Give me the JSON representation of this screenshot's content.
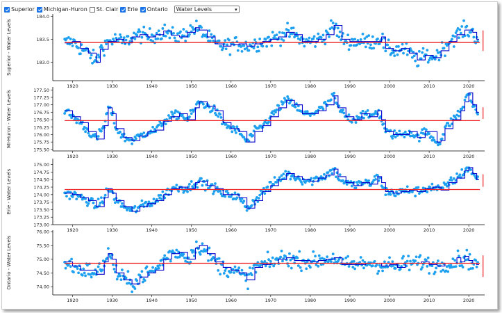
{
  "toolbar": {
    "lakes": [
      {
        "label": "Superior",
        "checked": true
      },
      {
        "label": "Michigan-Huron",
        "checked": true
      },
      {
        "label": "St. Clair",
        "checked": false
      },
      {
        "label": "Erie",
        "checked": true
      },
      {
        "label": "Ontario",
        "checked": true
      }
    ],
    "select_value": "Water Levels",
    "select_icon": "chevron-down-icon"
  },
  "colors": {
    "monthly_points": "#1ea0f0",
    "annual_mean_line": "#0000cc",
    "long_term_average": "#ee2222",
    "axis": "#000000"
  },
  "chart_data": [
    {
      "type": "scatter",
      "ylabel": "Superior - Water Levels",
      "ylim": [
        182.6,
        184.05
      ],
      "yticks": [
        183.0,
        183.5,
        184.0
      ],
      "ytick_labels": [
        "183.0",
        "183.5",
        "184.0"
      ],
      "xlim": [
        1915,
        2024
      ],
      "xticks": [
        1920,
        1930,
        1940,
        1950,
        1960,
        1970,
        1980,
        1990,
        2000,
        2010,
        2020
      ],
      "long_term_average": 183.43,
      "series": [
        {
          "type": "line",
          "points": [
            [
              1918,
              183.42
            ],
            [
              1920,
              183.45
            ],
            [
              1922,
              183.3
            ],
            [
              1924,
              183.2
            ],
            [
              1926,
              183.0
            ],
            [
              1927,
              183.28
            ],
            [
              1929,
              183.45
            ],
            [
              1931,
              183.5
            ],
            [
              1933,
              183.42
            ],
            [
              1935,
              183.55
            ],
            [
              1937,
              183.6
            ],
            [
              1939,
              183.55
            ],
            [
              1941,
              183.6
            ],
            [
              1943,
              183.68
            ],
            [
              1945,
              183.58
            ],
            [
              1947,
              183.55
            ],
            [
              1949,
              183.65
            ],
            [
              1951,
              183.75
            ],
            [
              1952,
              183.7
            ],
            [
              1954,
              183.55
            ],
            [
              1956,
              183.4
            ],
            [
              1958,
              183.35
            ],
            [
              1960,
              183.38
            ],
            [
              1962,
              183.4
            ],
            [
              1964,
              183.35
            ],
            [
              1966,
              183.4
            ],
            [
              1968,
              183.45
            ],
            [
              1970,
              183.5
            ],
            [
              1972,
              183.55
            ],
            [
              1974,
              183.65
            ],
            [
              1976,
              183.6
            ],
            [
              1978,
              183.45
            ],
            [
              1980,
              183.45
            ],
            [
              1982,
              183.5
            ],
            [
              1984,
              183.6
            ],
            [
              1986,
              183.8
            ],
            [
              1988,
              183.5
            ],
            [
              1990,
              183.45
            ],
            [
              1992,
              183.45
            ],
            [
              1994,
              183.45
            ],
            [
              1996,
              183.45
            ],
            [
              1998,
              183.55
            ],
            [
              1999,
              183.3
            ],
            [
              2001,
              183.25
            ],
            [
              2003,
              183.3
            ],
            [
              2005,
              183.2
            ],
            [
              2007,
              183.05
            ],
            [
              2009,
              183.15
            ],
            [
              2011,
              183.1
            ],
            [
              2013,
              183.25
            ],
            [
              2015,
              183.45
            ],
            [
              2017,
              183.6
            ],
            [
              2019,
              183.7
            ],
            [
              2021,
              183.65
            ],
            [
              2022,
              183.5
            ]
          ]
        },
        {
          "type": "scatter",
          "spread": 0.16
        }
      ]
    },
    {
      "type": "scatter",
      "ylabel": "MI-Huron - Water Levels",
      "ylim": [
        175.45,
        177.6
      ],
      "yticks": [
        175.5,
        175.75,
        176.0,
        176.25,
        176.5,
        176.75,
        177.0,
        177.25,
        177.5
      ],
      "ytick_labels": [
        "175.50",
        "175.75",
        "176.00",
        "176.25",
        "176.50",
        "176.75",
        "177.00",
        "177.25",
        "177.50"
      ],
      "xlim": [
        1915,
        2024
      ],
      "xticks": [
        1920,
        1930,
        1940,
        1950,
        1960,
        1970,
        1980,
        1990,
        2000,
        2010,
        2020
      ],
      "long_term_average": 176.47,
      "series": [
        {
          "type": "line",
          "points": [
            [
              1918,
              176.8
            ],
            [
              1920,
              176.6
            ],
            [
              1922,
              176.4
            ],
            [
              1924,
              176.1
            ],
            [
              1926,
              175.85
            ],
            [
              1928,
              176.3
            ],
            [
              1929,
              176.9
            ],
            [
              1930,
              176.7
            ],
            [
              1931,
              176.2
            ],
            [
              1933,
              175.9
            ],
            [
              1935,
              175.8
            ],
            [
              1937,
              175.95
            ],
            [
              1939,
              176.1
            ],
            [
              1941,
              176.15
            ],
            [
              1943,
              176.45
            ],
            [
              1945,
              176.6
            ],
            [
              1947,
              176.7
            ],
            [
              1949,
              176.5
            ],
            [
              1951,
              176.9
            ],
            [
              1952,
              177.1
            ],
            [
              1954,
              176.95
            ],
            [
              1956,
              176.8
            ],
            [
              1958,
              176.4
            ],
            [
              1960,
              176.2
            ],
            [
              1962,
              176.1
            ],
            [
              1964,
              175.75
            ],
            [
              1966,
              176.1
            ],
            [
              1968,
              176.3
            ],
            [
              1970,
              176.6
            ],
            [
              1972,
              176.9
            ],
            [
              1974,
              177.15
            ],
            [
              1976,
              177.0
            ],
            [
              1978,
              176.7
            ],
            [
              1980,
              176.7
            ],
            [
              1982,
              176.8
            ],
            [
              1984,
              177.0
            ],
            [
              1986,
              177.3
            ],
            [
              1987,
              176.9
            ],
            [
              1989,
              176.6
            ],
            [
              1991,
              176.5
            ],
            [
              1993,
              176.7
            ],
            [
              1995,
              176.6
            ],
            [
              1997,
              176.8
            ],
            [
              1998,
              176.5
            ],
            [
              1999,
              176.1
            ],
            [
              2001,
              176.0
            ],
            [
              2003,
              176.0
            ],
            [
              2005,
              176.1
            ],
            [
              2007,
              175.9
            ],
            [
              2009,
              176.1
            ],
            [
              2012,
              175.75
            ],
            [
              2013,
              175.8
            ],
            [
              2014,
              176.2
            ],
            [
              2016,
              176.5
            ],
            [
              2018,
              176.8
            ],
            [
              2019,
              177.1
            ],
            [
              2020,
              177.4
            ],
            [
              2021,
              177.0
            ],
            [
              2022,
              176.75
            ]
          ]
        },
        {
          "type": "scatter",
          "spread": 0.14
        }
      ]
    },
    {
      "type": "scatter",
      "ylabel": "Erie - Water Levels",
      "ylim": [
        173.0,
        175.2
      ],
      "yticks": [
        173.0,
        173.25,
        173.5,
        173.75,
        174.0,
        174.25,
        174.5,
        174.75,
        175.0
      ],
      "ytick_labels": [
        "173.00",
        "173.25",
        "173.50",
        "173.75",
        "174.00",
        "174.25",
        "174.50",
        "174.75",
        "175.00"
      ],
      "xlim": [
        1915,
        2024
      ],
      "xticks": [
        1920,
        1930,
        1940,
        1950,
        1960,
        1970,
        1980,
        1990,
        2000,
        2010,
        2020
      ],
      "long_term_average": 174.17,
      "series": [
        {
          "type": "line",
          "points": [
            [
              1918,
              174.05
            ],
            [
              1920,
              174.0
            ],
            [
              1922,
              173.9
            ],
            [
              1924,
              173.8
            ],
            [
              1926,
              173.6
            ],
            [
              1928,
              173.9
            ],
            [
              1929,
              174.2
            ],
            [
              1930,
              174.05
            ],
            [
              1931,
              173.8
            ],
            [
              1933,
              173.6
            ],
            [
              1935,
              173.45
            ],
            [
              1937,
              173.6
            ],
            [
              1939,
              173.7
            ],
            [
              1941,
              173.8
            ],
            [
              1943,
              174.0
            ],
            [
              1945,
              174.2
            ],
            [
              1947,
              174.25
            ],
            [
              1949,
              174.2
            ],
            [
              1951,
              174.4
            ],
            [
              1952,
              174.45
            ],
            [
              1954,
              174.3
            ],
            [
              1956,
              174.2
            ],
            [
              1958,
              174.0
            ],
            [
              1960,
              174.0
            ],
            [
              1962,
              173.9
            ],
            [
              1964,
              173.55
            ],
            [
              1966,
              173.8
            ],
            [
              1968,
              174.1
            ],
            [
              1970,
              174.3
            ],
            [
              1972,
              174.5
            ],
            [
              1974,
              174.7
            ],
            [
              1976,
              174.6
            ],
            [
              1978,
              174.5
            ],
            [
              1980,
              174.45
            ],
            [
              1982,
              174.55
            ],
            [
              1984,
              174.65
            ],
            [
              1986,
              174.85
            ],
            [
              1987,
              174.6
            ],
            [
              1989,
              174.4
            ],
            [
              1991,
              174.3
            ],
            [
              1993,
              174.4
            ],
            [
              1995,
              174.35
            ],
            [
              1997,
              174.6
            ],
            [
              1998,
              174.4
            ],
            [
              1999,
              174.1
            ],
            [
              2001,
              174.05
            ],
            [
              2003,
              174.1
            ],
            [
              2005,
              174.15
            ],
            [
              2007,
              174.1
            ],
            [
              2009,
              174.2
            ],
            [
              2011,
              174.25
            ],
            [
              2013,
              174.15
            ],
            [
              2015,
              174.4
            ],
            [
              2017,
              174.55
            ],
            [
              2019,
              174.8
            ],
            [
              2020,
              174.9
            ],
            [
              2021,
              174.7
            ],
            [
              2022,
              174.5
            ]
          ]
        },
        {
          "type": "scatter",
          "spread": 0.15
        }
      ]
    },
    {
      "type": "scatter",
      "ylabel": "Ontario - Water Levels",
      "ylim": [
        73.7,
        76.05
      ],
      "yticks": [
        74.0,
        74.5,
        75.0,
        75.5,
        76.0
      ],
      "ytick_labels": [
        "74.00",
        "74.50",
        "75.00",
        "75.50",
        "76.00"
      ],
      "xlim": [
        1915,
        2024
      ],
      "xticks": [
        1920,
        1930,
        1940,
        1950,
        1960,
        1970,
        1980,
        1990,
        2000,
        2010,
        2020
      ],
      "long_term_average": 74.85,
      "series": [
        {
          "type": "line",
          "points": [
            [
              1918,
              74.9
            ],
            [
              1920,
              74.75
            ],
            [
              1922,
              74.6
            ],
            [
              1924,
              74.6
            ],
            [
              1926,
              74.45
            ],
            [
              1928,
              74.9
            ],
            [
              1929,
              75.2
            ],
            [
              1930,
              75.0
            ],
            [
              1931,
              74.5
            ],
            [
              1933,
              74.25
            ],
            [
              1935,
              74.1
            ],
            [
              1937,
              74.35
            ],
            [
              1939,
              74.5
            ],
            [
              1941,
              74.6
            ],
            [
              1943,
              75.0
            ],
            [
              1945,
              75.2
            ],
            [
              1947,
              75.25
            ],
            [
              1949,
              75.0
            ],
            [
              1951,
              75.4
            ],
            [
              1952,
              75.5
            ],
            [
              1954,
              75.2
            ],
            [
              1956,
              74.9
            ],
            [
              1958,
              74.7
            ],
            [
              1960,
              74.6
            ],
            [
              1962,
              74.5
            ],
            [
              1964,
              74.25
            ],
            [
              1966,
              74.7
            ],
            [
              1968,
              74.8
            ],
            [
              1970,
              74.85
            ],
            [
              1972,
              75.0
            ],
            [
              1974,
              75.05
            ],
            [
              1976,
              74.95
            ],
            [
              1978,
              74.95
            ],
            [
              1980,
              74.9
            ],
            [
              1982,
              74.95
            ],
            [
              1984,
              75.0
            ],
            [
              1986,
              75.05
            ],
            [
              1988,
              74.8
            ],
            [
              1990,
              74.8
            ],
            [
              1992,
              74.8
            ],
            [
              1994,
              74.85
            ],
            [
              1996,
              74.85
            ],
            [
              1998,
              74.75
            ],
            [
              2000,
              74.8
            ],
            [
              2002,
              74.7
            ],
            [
              2004,
              74.85
            ],
            [
              2006,
              74.85
            ],
            [
              2008,
              74.9
            ],
            [
              2010,
              74.8
            ],
            [
              2012,
              74.75
            ],
            [
              2014,
              74.85
            ],
            [
              2016,
              74.85
            ],
            [
              2017,
              75.05
            ],
            [
              2018,
              74.9
            ],
            [
              2019,
              75.1
            ],
            [
              2020,
              74.95
            ],
            [
              2021,
              74.85
            ],
            [
              2022,
              74.8
            ]
          ]
        },
        {
          "type": "scatter",
          "spread": 0.28
        }
      ]
    }
  ]
}
